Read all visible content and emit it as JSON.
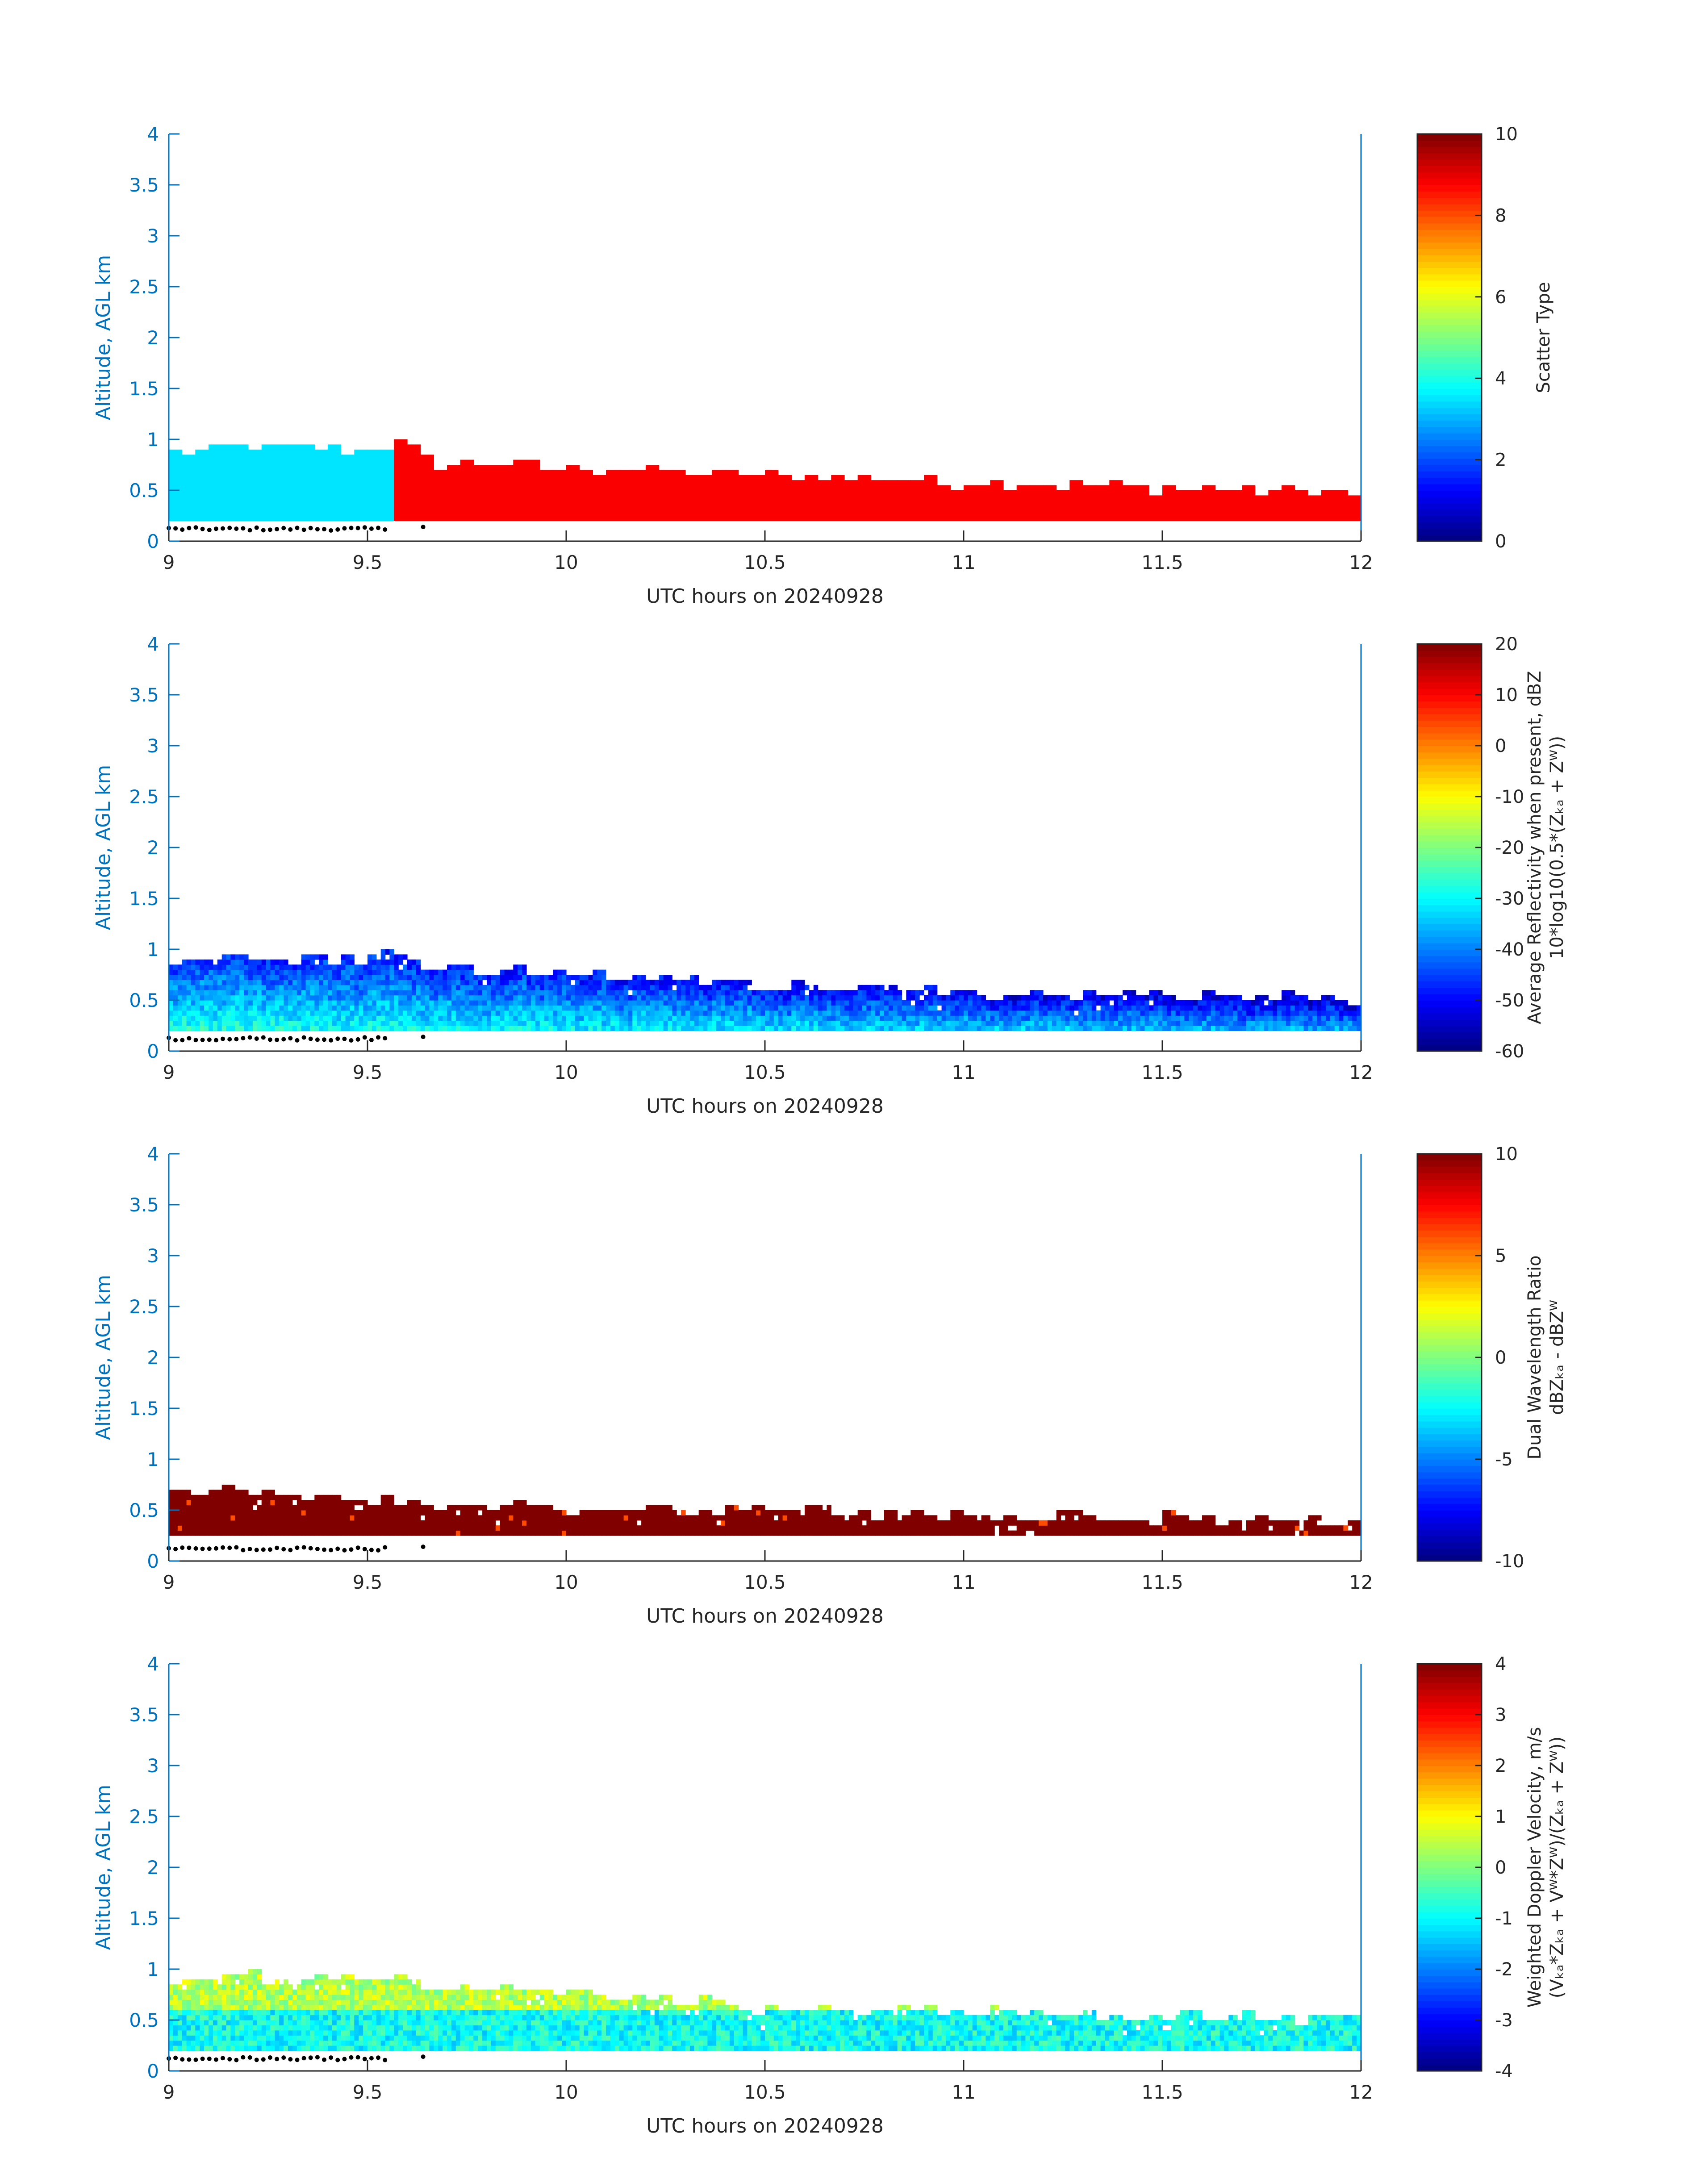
{
  "figure": {
    "background": "#ffffff",
    "axis_color": "#0072bd",
    "text_color": "#262626"
  },
  "chart_data": [
    {
      "type": "heatmap",
      "title": "",
      "xlabel": "UTC hours on 20240928",
      "ylabel": "Altitude, AGL km",
      "xlim": [
        9,
        12
      ],
      "ylim": [
        0,
        4
      ],
      "xticks": [
        "9",
        "9.5",
        "10",
        "10.5",
        "11",
        "11.5",
        "12"
      ],
      "yticks": [
        "0",
        "0.5",
        "1",
        "1.5",
        "2",
        "2.5",
        "3",
        "3.5",
        "4"
      ],
      "colorbar": {
        "label": "Scatter Type",
        "label_line2": "",
        "clim": [
          0,
          10
        ],
        "ticks": [
          "0",
          "2",
          "4",
          "6",
          "8",
          "10"
        ],
        "colormap": "jet"
      },
      "profile": {
        "x": [
          9.0,
          9.25,
          9.5,
          9.58,
          9.66,
          10.0,
          10.5,
          11.0,
          11.5,
          12.0
        ],
        "base_km": [
          0.2,
          0.2,
          0.2,
          0.2,
          0.2,
          0.2,
          0.2,
          0.2,
          0.2,
          0.2
        ],
        "top_km": [
          0.85,
          0.9,
          0.88,
          0.95,
          0.75,
          0.7,
          0.62,
          0.55,
          0.5,
          0.45
        ]
      },
      "field": "scatter_type",
      "field_note": "value 3.5 (cyan) before 9.58 h, value 8.8 (red-orange) after",
      "classes": [
        {
          "from": 9.0,
          "to": 9.58,
          "value": 3.5
        },
        {
          "from": 9.58,
          "to": 12.0,
          "value": 8.8
        }
      ],
      "surface_markers_km": 0.12
    },
    {
      "type": "heatmap",
      "title": "",
      "xlabel": "UTC hours on 20240928",
      "ylabel": "Altitude, AGL km",
      "xlim": [
        9,
        12
      ],
      "ylim": [
        0,
        4
      ],
      "xticks": [
        "9",
        "9.5",
        "10",
        "10.5",
        "11",
        "11.5",
        "12"
      ],
      "yticks": [
        "0",
        "0.5",
        "1",
        "1.5",
        "2",
        "2.5",
        "3",
        "3.5",
        "4"
      ],
      "colorbar": {
        "label": "Average Reflectivity when present, dBZ",
        "label_line2": "10*log10(0.5*(Zₖₐ + Zᵂ))",
        "clim": [
          -60,
          20
        ],
        "ticks": [
          "-60",
          "-50",
          "-40",
          "-30",
          "-20",
          "-10",
          "0",
          "10",
          "20"
        ],
        "colormap": "jet"
      },
      "profile": {
        "x": [
          9.0,
          9.25,
          9.5,
          9.58,
          9.66,
          10.0,
          10.5,
          11.0,
          11.5,
          12.0
        ],
        "base_km": [
          0.2,
          0.2,
          0.2,
          0.2,
          0.2,
          0.2,
          0.2,
          0.2,
          0.2,
          0.2
        ],
        "top_km": [
          0.88,
          0.9,
          0.88,
          0.95,
          0.8,
          0.75,
          0.62,
          0.56,
          0.52,
          0.5
        ]
      },
      "field": "reflectivity_dbz",
      "typical_range": [
        -50,
        -25
      ],
      "surface_markers_km": 0.12
    },
    {
      "type": "heatmap",
      "title": "",
      "xlabel": "UTC hours on 20240928",
      "ylabel": "Altitude, AGL km",
      "xlim": [
        9,
        12
      ],
      "ylim": [
        0,
        4
      ],
      "xticks": [
        "9",
        "9.5",
        "10",
        "10.5",
        "11",
        "11.5",
        "12"
      ],
      "yticks": [
        "0",
        "0.5",
        "1",
        "1.5",
        "2",
        "2.5",
        "3",
        "3.5",
        "4"
      ],
      "colorbar": {
        "label": "Dual Wavelength Ratio",
        "label_line2": "dBZₖₐ - dBZᵂ",
        "clim": [
          -10,
          10
        ],
        "ticks": [
          "-10",
          "-5",
          "0",
          "5",
          "10"
        ],
        "colormap": "jet"
      },
      "profile": {
        "x": [
          9.0,
          9.25,
          9.5,
          10.0,
          10.5,
          11.0,
          11.5,
          12.0
        ],
        "base_km": [
          0.25,
          0.25,
          0.25,
          0.25,
          0.25,
          0.25,
          0.25,
          0.25
        ],
        "top_km": [
          0.65,
          0.7,
          0.55,
          0.5,
          0.5,
          0.42,
          0.4,
          0.35
        ]
      },
      "field": "dual_wavelength_ratio",
      "typical_value": 10,
      "surface_markers_km": 0.12
    },
    {
      "type": "heatmap",
      "title": "",
      "xlabel": "UTC hours on 20240928",
      "ylabel": "Altitude, AGL km",
      "xlim": [
        9,
        12
      ],
      "ylim": [
        0,
        4
      ],
      "xticks": [
        "9",
        "9.5",
        "10",
        "10.5",
        "11",
        "11.5",
        "12"
      ],
      "yticks": [
        "0",
        "0.5",
        "1",
        "1.5",
        "2",
        "2.5",
        "3",
        "3.5",
        "4"
      ],
      "colorbar": {
        "label": "Weighted Doppler Velocity, m/s",
        "label_line2": "(Vₖₐ*Zₖₐ + Vᵂ*Zᵂ)/(Zₖₐ + Zᵂ))",
        "clim": [
          -4,
          4
        ],
        "ticks": [
          "-4",
          "-3",
          "-2",
          "-1",
          "0",
          "1",
          "2",
          "3",
          "4"
        ],
        "colormap": "jet"
      },
      "profile": {
        "x": [
          9.0,
          9.25,
          9.5,
          9.58,
          9.66,
          10.0,
          10.5,
          11.0,
          11.5,
          12.0
        ],
        "base_km": [
          0.2,
          0.2,
          0.2,
          0.2,
          0.2,
          0.2,
          0.2,
          0.2,
          0.2,
          0.2
        ],
        "top_km": [
          0.88,
          0.9,
          0.88,
          0.95,
          0.8,
          0.75,
          0.6,
          0.56,
          0.52,
          0.5
        ]
      },
      "field": "doppler_velocity_ms",
      "typical_range": [
        -1.5,
        0.5
      ],
      "surface_markers_km": 0.12
    }
  ]
}
